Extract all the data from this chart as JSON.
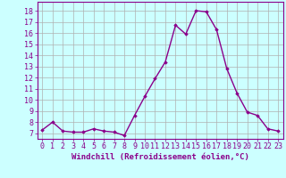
{
  "x": [
    0,
    1,
    2,
    3,
    4,
    5,
    6,
    7,
    8,
    9,
    10,
    11,
    12,
    13,
    14,
    15,
    16,
    17,
    18,
    19,
    20,
    21,
    22,
    23
  ],
  "y": [
    7.3,
    8.0,
    7.2,
    7.1,
    7.1,
    7.4,
    7.2,
    7.1,
    6.8,
    8.6,
    10.3,
    11.9,
    13.4,
    16.7,
    15.9,
    18.0,
    17.9,
    16.3,
    12.8,
    10.6,
    8.9,
    8.6,
    7.4,
    7.2
  ],
  "line_color": "#8b008b",
  "marker": "D",
  "marker_size": 1.8,
  "bg_color": "#ccffff",
  "grid_color": "#b0b0b0",
  "xlabel": "Windchill (Refroidissement éolien,°C)",
  "xlabel_fontsize": 6.5,
  "tick_fontsize": 6,
  "ylim": [
    6.5,
    18.8
  ],
  "xlim": [
    -0.5,
    23.5
  ],
  "yticks": [
    7,
    8,
    9,
    10,
    11,
    12,
    13,
    14,
    15,
    16,
    17,
    18
  ],
  "xticks": [
    0,
    1,
    2,
    3,
    4,
    5,
    6,
    7,
    8,
    9,
    10,
    11,
    12,
    13,
    14,
    15,
    16,
    17,
    18,
    19,
    20,
    21,
    22,
    23
  ],
  "line_width": 1.0
}
